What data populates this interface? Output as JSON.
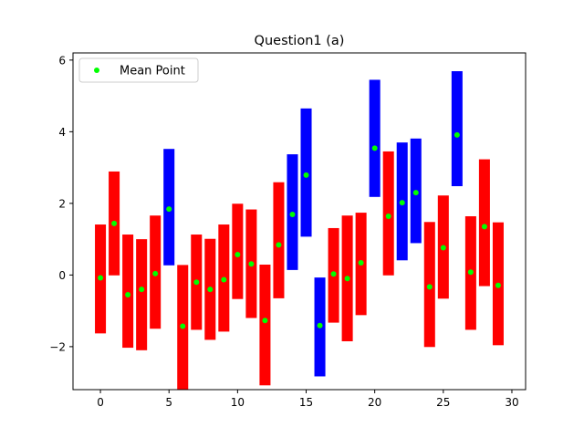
{
  "chart_data": {
    "type": "bar",
    "title": "Question1 (a)",
    "xlabel": "",
    "ylabel": "",
    "xlim": [
      -2,
      31
    ],
    "ylim": [
      -3.2,
      6.2
    ],
    "xticks": [
      0,
      5,
      10,
      15,
      20,
      25,
      30
    ],
    "yticks": [
      -2,
      0,
      2,
      4,
      6
    ],
    "grid": false,
    "legend": {
      "placement": "top-left",
      "entries": [
        {
          "label": "Mean Point",
          "color": "#00ff00",
          "marker": "circle"
        }
      ]
    },
    "colors": {
      "below": "#ff0000",
      "above": "#0000ff",
      "mean": "#00ff00"
    },
    "bars": [
      {
        "x": 0,
        "low": -1.63,
        "high": 1.41,
        "mean": -0.08,
        "color": "red"
      },
      {
        "x": 1,
        "low": -0.01,
        "high": 2.89,
        "mean": 1.44,
        "color": "red"
      },
      {
        "x": 2,
        "low": -2.03,
        "high": 1.13,
        "mean": -0.55,
        "color": "red"
      },
      {
        "x": 3,
        "low": -2.1,
        "high": 1.0,
        "mean": -0.4,
        "color": "red"
      },
      {
        "x": 4,
        "low": -1.5,
        "high": 1.66,
        "mean": 0.04,
        "color": "red"
      },
      {
        "x": 5,
        "low": 0.27,
        "high": 3.52,
        "mean": 1.84,
        "color": "blue"
      },
      {
        "x": 6,
        "low": -3.2,
        "high": 0.28,
        "mean": -1.43,
        "color": "red"
      },
      {
        "x": 7,
        "low": -1.53,
        "high": 1.13,
        "mean": -0.2,
        "color": "red"
      },
      {
        "x": 8,
        "low": -1.81,
        "high": 1.01,
        "mean": -0.4,
        "color": "red"
      },
      {
        "x": 9,
        "low": -1.58,
        "high": 1.41,
        "mean": -0.13,
        "color": "red"
      },
      {
        "x": 10,
        "low": -0.67,
        "high": 1.99,
        "mean": 0.57,
        "color": "red"
      },
      {
        "x": 11,
        "low": -1.2,
        "high": 1.83,
        "mean": 0.31,
        "color": "red"
      },
      {
        "x": 12,
        "low": -3.08,
        "high": 0.29,
        "mean": -1.27,
        "color": "red"
      },
      {
        "x": 13,
        "low": -0.65,
        "high": 2.59,
        "mean": 0.84,
        "color": "red"
      },
      {
        "x": 14,
        "low": 0.14,
        "high": 3.37,
        "mean": 1.69,
        "color": "blue"
      },
      {
        "x": 15,
        "low": 1.07,
        "high": 4.65,
        "mean": 2.79,
        "color": "blue"
      },
      {
        "x": 16,
        "low": -2.83,
        "high": -0.07,
        "mean": -1.41,
        "color": "blue"
      },
      {
        "x": 17,
        "low": -1.33,
        "high": 1.31,
        "mean": 0.03,
        "color": "red"
      },
      {
        "x": 18,
        "low": -1.85,
        "high": 1.66,
        "mean": -0.1,
        "color": "red"
      },
      {
        "x": 19,
        "low": -1.12,
        "high": 1.74,
        "mean": 0.34,
        "color": "red"
      },
      {
        "x": 20,
        "low": 2.18,
        "high": 5.45,
        "mean": 3.54,
        "color": "blue"
      },
      {
        "x": 21,
        "low": -0.01,
        "high": 3.45,
        "mean": 1.64,
        "color": "red"
      },
      {
        "x": 22,
        "low": 0.41,
        "high": 3.7,
        "mean": 2.02,
        "color": "blue"
      },
      {
        "x": 23,
        "low": 0.89,
        "high": 3.81,
        "mean": 2.3,
        "color": "blue"
      },
      {
        "x": 24,
        "low": -2.01,
        "high": 1.48,
        "mean": -0.33,
        "color": "red"
      },
      {
        "x": 25,
        "low": -0.66,
        "high": 2.22,
        "mean": 0.76,
        "color": "red"
      },
      {
        "x": 26,
        "low": 2.48,
        "high": 5.69,
        "mean": 3.91,
        "color": "blue"
      },
      {
        "x": 27,
        "low": -1.53,
        "high": 1.64,
        "mean": 0.08,
        "color": "red"
      },
      {
        "x": 28,
        "low": -0.31,
        "high": 3.23,
        "mean": 1.35,
        "color": "red"
      },
      {
        "x": 29,
        "low": -1.96,
        "high": 1.47,
        "mean": -0.29,
        "color": "red"
      }
    ]
  }
}
